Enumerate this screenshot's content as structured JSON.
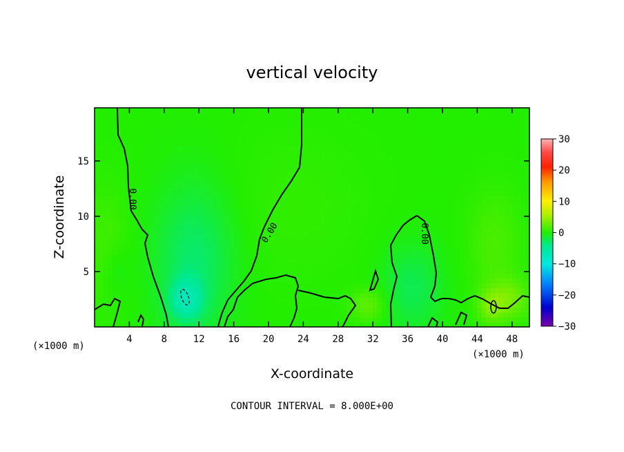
{
  "chart_data": {
    "type": "heatmap",
    "title": "vertical velocity",
    "xlabel": "X-coordinate",
    "ylabel": "Z-coordinate",
    "x_unit": "(×1000 m)",
    "x_unit_left": "(×1000 m)",
    "x_unit_right": "(×1000 m)",
    "xlim": [
      0,
      50
    ],
    "ylim": [
      0,
      19.8
    ],
    "x_ticks": [
      4,
      8,
      12,
      16,
      20,
      24,
      28,
      32,
      36,
      40,
      44,
      48
    ],
    "y_ticks": [
      5,
      10,
      15
    ],
    "colorbar": {
      "range": [
        -30,
        30
      ],
      "ticks": [
        30,
        20,
        10,
        0,
        -10,
        -20,
        -30
      ],
      "tick_labels": [
        "30",
        "20",
        "10",
        "0",
        "−10",
        "−20",
        "−30"
      ]
    },
    "contour_interval_text": "CONTOUR INTERVAL = 8.000E+00",
    "contour_labels": [
      "0.00",
      "0.00",
      "0.00"
    ],
    "background_value": 0,
    "features": [
      {
        "kind": "updraft",
        "x": 23,
        "z": 11,
        "sx": 9,
        "sz": 7,
        "w": 0.6
      },
      {
        "kind": "updraft",
        "x": 1.5,
        "z": 7,
        "sx": 2.5,
        "sz": 6,
        "w": 1.3
      },
      {
        "kind": "updraft",
        "x": 46,
        "z": 7.5,
        "sx": 3,
        "sz": 5,
        "w": 1.6
      },
      {
        "kind": "updraft",
        "x": 47.5,
        "z": 2.5,
        "sx": 2.5,
        "sz": 1.8,
        "w": 3.2
      },
      {
        "kind": "updraft",
        "x": 31.5,
        "z": 2,
        "sx": 2,
        "sz": 1.5,
        "w": 2.6
      },
      {
        "kind": "updraft",
        "x": 45.5,
        "z": 1.8,
        "sx": 1.4,
        "sz": 1.4,
        "w": 2.5
      },
      {
        "kind": "downdraft",
        "x": 11.5,
        "z": 6,
        "sx": 4.5,
        "sz": 7,
        "w": -3.2
      },
      {
        "kind": "downdraft",
        "x": 10.5,
        "z": 2.5,
        "sx": 1.8,
        "sz": 1.8,
        "w": -5.2
      },
      {
        "kind": "downdraft",
        "x": 36.5,
        "z": 3.5,
        "sx": 3.5,
        "sz": 4,
        "w": -2.4
      },
      {
        "kind": "downdraft",
        "x": 2.5,
        "z": 5,
        "sx": 1.5,
        "sz": 2.5,
        "w": -1.2
      }
    ],
    "grid": false,
    "legend": "colorbar right"
  },
  "colors": {
    "background": "#ffffff",
    "field_zero": "#22ee00",
    "contour_line": "#000000"
  }
}
